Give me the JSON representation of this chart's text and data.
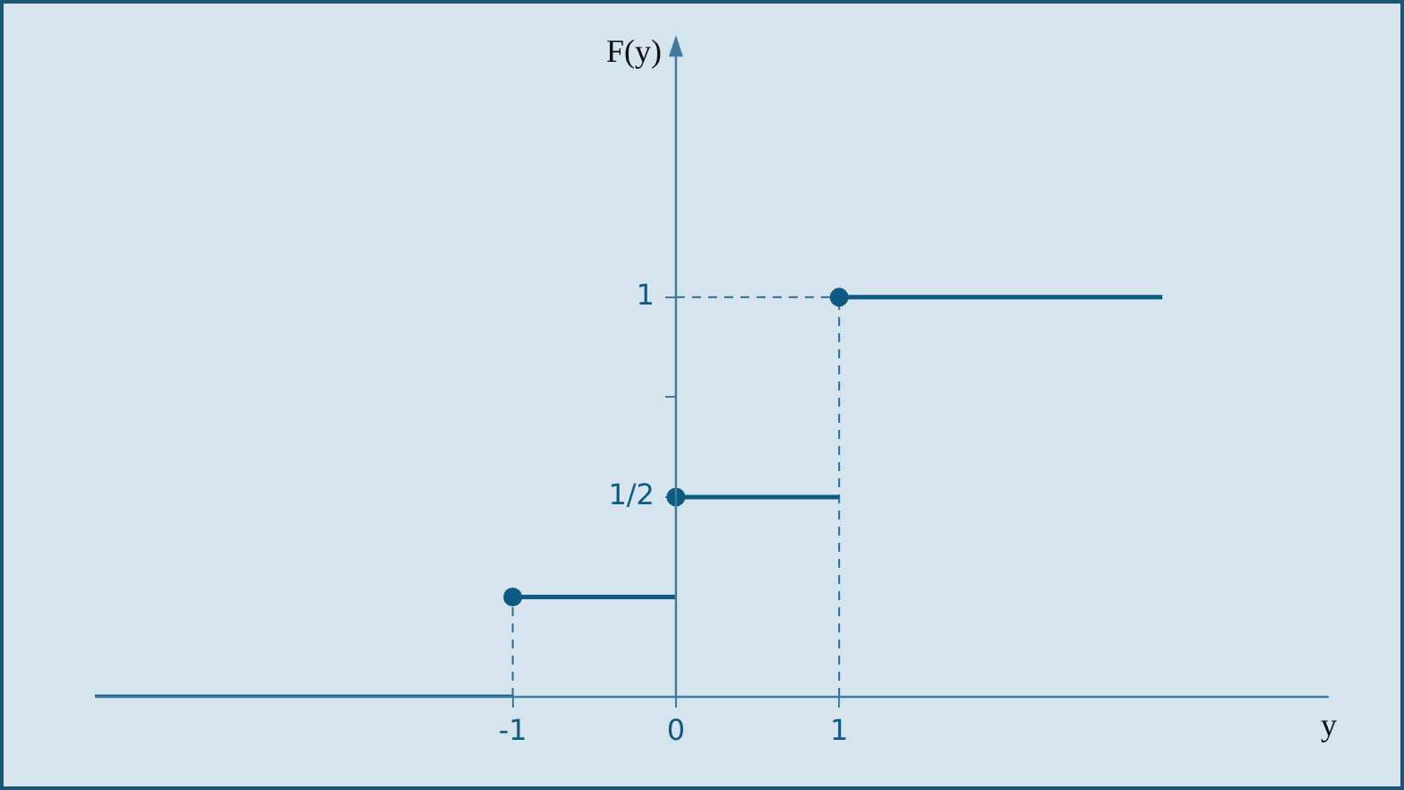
{
  "chart_data": {
    "type": "step",
    "xlabel": "y",
    "ylabel": "F(y)",
    "x": [
      -3.56,
      -1,
      0,
      1,
      2.98
    ],
    "series": [
      {
        "color": "#0e5a80",
        "values": [
          0,
          0.25,
          0.5,
          1,
          1
        ]
      },
      {
        "type": "line",
        "line_style": "dashed",
        "marker": "none",
        "color": "#2a6e94",
        "x": [
          -1,
          -1
        ],
        "values": [
          0,
          0.25
        ]
      },
      {
        "type": "line",
        "line_style": "dashed",
        "marker": "none",
        "color": "#2a6e94",
        "x": [
          1,
          1
        ],
        "values": [
          0,
          1
        ]
      },
      {
        "type": "line",
        "line_style": "dashed",
        "marker": "none",
        "color": "#2a6e94",
        "x": [
          0,
          1
        ],
        "values": [
          1,
          1
        ]
      }
    ],
    "marker": "circle",
    "line_style": "solid",
    "xlim": [
      -3.56,
      4.0
    ],
    "xticks": [
      -1,
      0,
      1
    ],
    "ylim": [
      0,
      1.62
    ],
    "yticks": [
      {
        "value": 0.5,
        "label": "1/2"
      },
      {
        "value": 0.75,
        "label": null
      },
      {
        "value": 1,
        "label": "1"
      }
    ],
    "grid": false,
    "legend": false
  }
}
